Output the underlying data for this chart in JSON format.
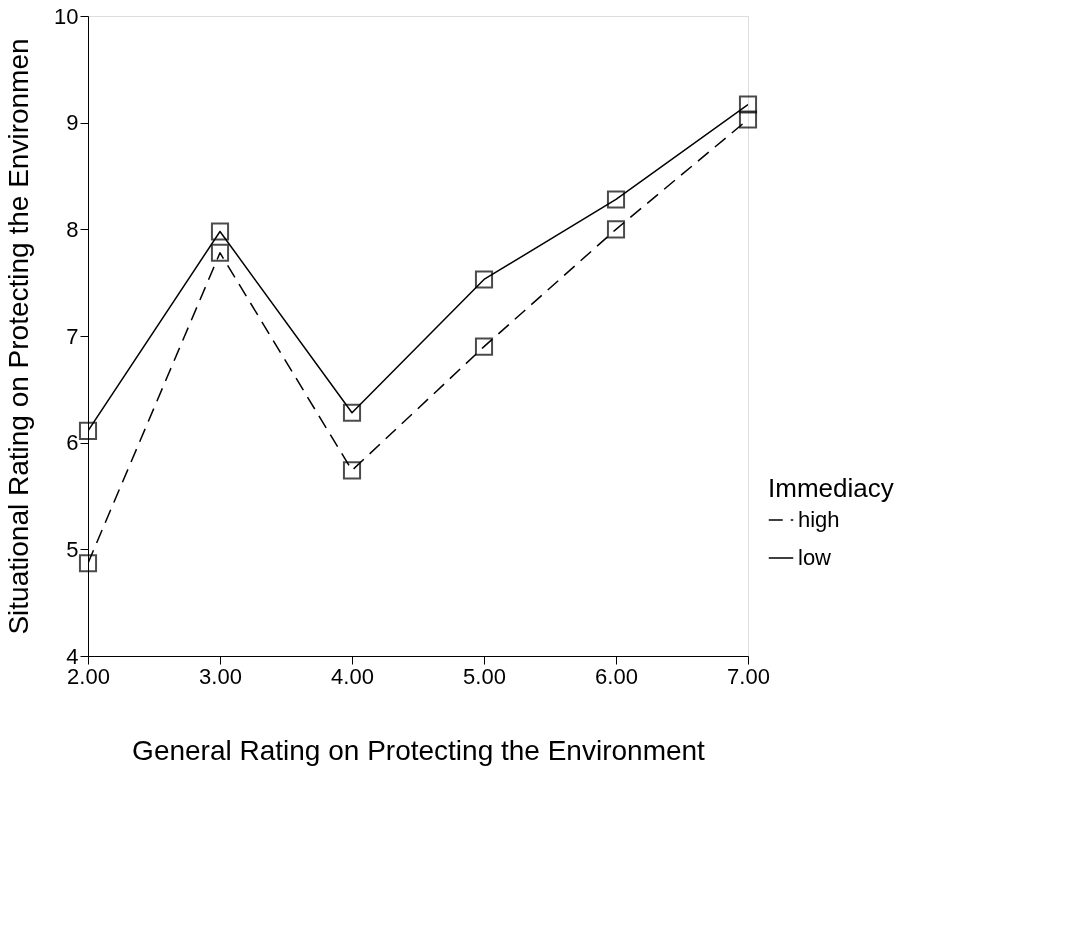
{
  "chart_data": {
    "type": "line",
    "xlabel": "General Rating on Protecting the Environment",
    "ylabel": "Situational Rating on Protecting the Environmen",
    "legend_title": "Immediacy",
    "x": [
      2,
      3,
      4,
      5,
      6,
      7
    ],
    "series": [
      {
        "name": "high",
        "color": "#000000",
        "line_style": "dashed",
        "values": [
          4.87,
          7.78,
          5.74,
          6.9,
          8.0,
          9.03
        ]
      },
      {
        "name": "low",
        "color": "#000000",
        "line_style": "solid",
        "values": [
          6.11,
          7.98,
          6.28,
          7.53,
          8.28,
          9.17
        ]
      }
    ],
    "xlim": [
      2,
      7
    ],
    "ylim": [
      4,
      10
    ],
    "xticks": [
      {
        "value": 2,
        "label": "2.00"
      },
      {
        "value": 3,
        "label": "3.00"
      },
      {
        "value": 4,
        "label": "4.00"
      },
      {
        "value": 5,
        "label": "5.00"
      },
      {
        "value": 6,
        "label": "6.00"
      },
      {
        "value": 7,
        "label": "7.00"
      }
    ],
    "yticks": [
      4,
      5,
      6,
      7,
      8,
      9,
      10
    ],
    "marker": "square",
    "grid": false,
    "legend": "bottom right"
  }
}
